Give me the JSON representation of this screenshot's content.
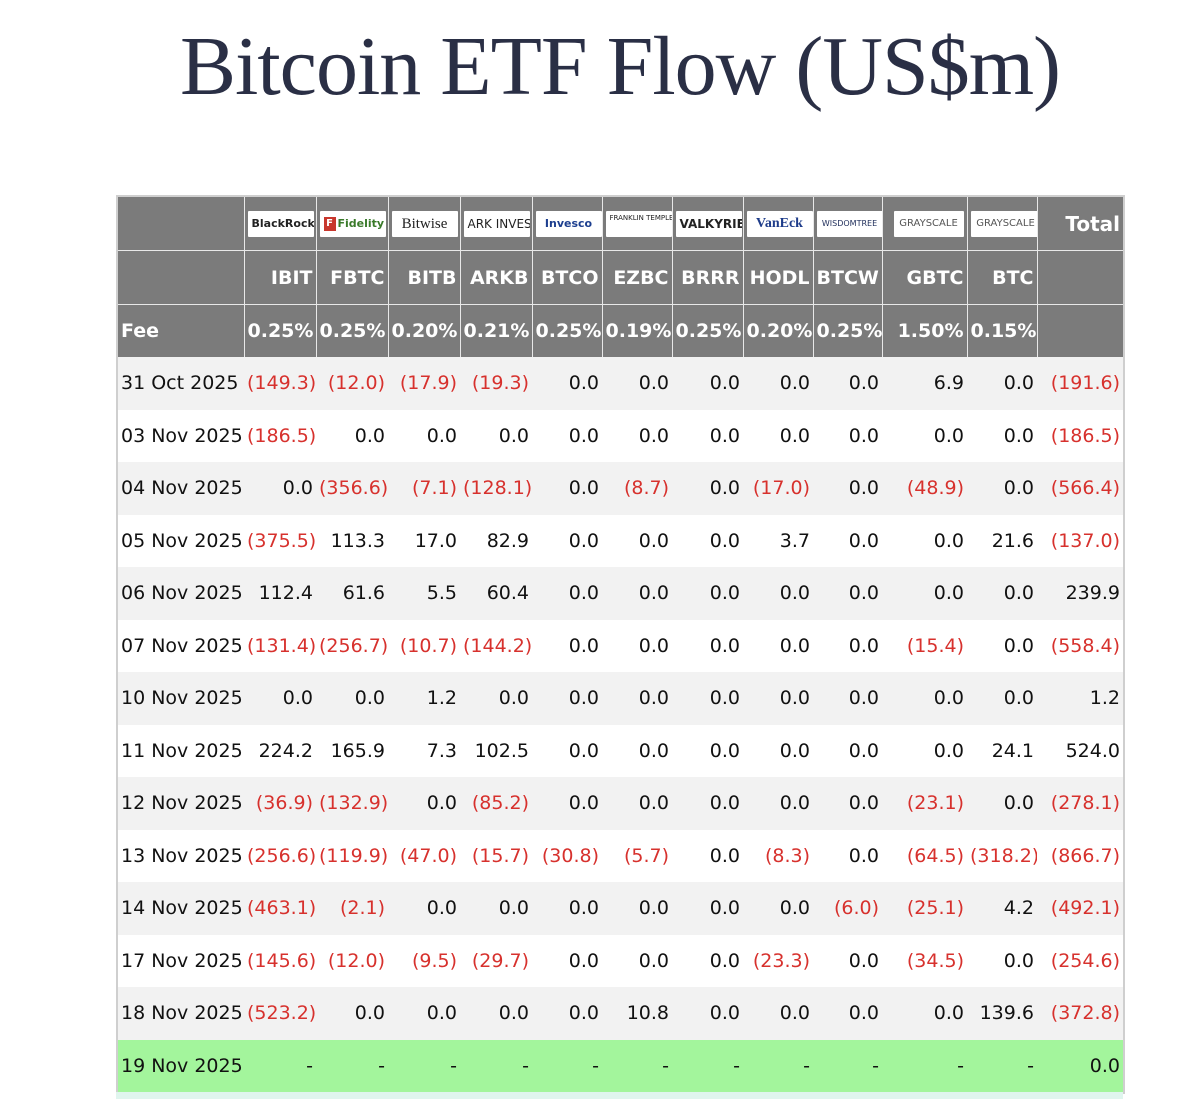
{
  "title": "Bitcoin ETF Flow (US$m)",
  "header": {
    "issuers": [
      {
        "name": "BlackRock",
        "icon": "blackrock-logo"
      },
      {
        "name": "Fidelity",
        "icon": "fidelity-logo"
      },
      {
        "name": "Bitwise",
        "icon": "bitwise-logo"
      },
      {
        "name": "ARK INVEST",
        "icon": "ark-logo"
      },
      {
        "name": "Invesco",
        "icon": "invesco-logo"
      },
      {
        "name": "FRANKLIN TEMPLETON",
        "icon": "franklin-logo"
      },
      {
        "name": "VALKYRIE",
        "icon": "valkyrie-logo"
      },
      {
        "name": "VanEck",
        "icon": "vaneck-logo"
      },
      {
        "name": "WISDOMTREE",
        "icon": "wisdomtree-logo"
      },
      {
        "name": "GRAYSCALE",
        "icon": "grayscale-logo"
      },
      {
        "name": "GRAYSCALE",
        "icon": "grayscale-logo"
      }
    ],
    "total_label": "Total",
    "tickers": [
      "IBIT",
      "FBTC",
      "BITB",
      "ARKB",
      "BTCO",
      "EZBC",
      "BRRR",
      "HODL",
      "BTCW",
      "GBTC",
      "BTC"
    ],
    "fee_label": "Fee",
    "fees": [
      "0.25%",
      "0.25%",
      "0.20%",
      "0.21%",
      "0.25%",
      "0.19%",
      "0.25%",
      "0.20%",
      "0.25%",
      "1.50%",
      "0.15%"
    ]
  },
  "rows": [
    {
      "date": "31 Oct 2025",
      "values": [
        "(149.3)",
        "(12.0)",
        "(17.9)",
        "(19.3)",
        "0.0",
        "0.0",
        "0.0",
        "0.0",
        "0.0",
        "6.9",
        "0.0"
      ],
      "total": "(191.6)"
    },
    {
      "date": "03 Nov 2025",
      "values": [
        "(186.5)",
        "0.0",
        "0.0",
        "0.0",
        "0.0",
        "0.0",
        "0.0",
        "0.0",
        "0.0",
        "0.0",
        "0.0"
      ],
      "total": "(186.5)"
    },
    {
      "date": "04 Nov 2025",
      "values": [
        "0.0",
        "(356.6)",
        "(7.1)",
        "(128.1)",
        "0.0",
        "(8.7)",
        "0.0",
        "(17.0)",
        "0.0",
        "(48.9)",
        "0.0"
      ],
      "total": "(566.4)"
    },
    {
      "date": "05 Nov 2025",
      "values": [
        "(375.5)",
        "113.3",
        "17.0",
        "82.9",
        "0.0",
        "0.0",
        "0.0",
        "3.7",
        "0.0",
        "0.0",
        "21.6"
      ],
      "total": "(137.0)"
    },
    {
      "date": "06 Nov 2025",
      "values": [
        "112.4",
        "61.6",
        "5.5",
        "60.4",
        "0.0",
        "0.0",
        "0.0",
        "0.0",
        "0.0",
        "0.0",
        "0.0"
      ],
      "total": "239.9"
    },
    {
      "date": "07 Nov 2025",
      "values": [
        "(131.4)",
        "(256.7)",
        "(10.7)",
        "(144.2)",
        "0.0",
        "0.0",
        "0.0",
        "0.0",
        "0.0",
        "(15.4)",
        "0.0"
      ],
      "total": "(558.4)"
    },
    {
      "date": "10 Nov 2025",
      "values": [
        "0.0",
        "0.0",
        "1.2",
        "0.0",
        "0.0",
        "0.0",
        "0.0",
        "0.0",
        "0.0",
        "0.0",
        "0.0"
      ],
      "total": "1.2"
    },
    {
      "date": "11 Nov 2025",
      "values": [
        "224.2",
        "165.9",
        "7.3",
        "102.5",
        "0.0",
        "0.0",
        "0.0",
        "0.0",
        "0.0",
        "0.0",
        "24.1"
      ],
      "total": "524.0"
    },
    {
      "date": "12 Nov 2025",
      "values": [
        "(36.9)",
        "(132.9)",
        "0.0",
        "(85.2)",
        "0.0",
        "0.0",
        "0.0",
        "0.0",
        "0.0",
        "(23.1)",
        "0.0"
      ],
      "total": "(278.1)"
    },
    {
      "date": "13 Nov 2025",
      "values": [
        "(256.6)",
        "(119.9)",
        "(47.0)",
        "(15.7)",
        "(30.8)",
        "(5.7)",
        "0.0",
        "(8.3)",
        "0.0",
        "(64.5)",
        "(318.2)"
      ],
      "total": "(866.7)"
    },
    {
      "date": "14 Nov 2025",
      "values": [
        "(463.1)",
        "(2.1)",
        "0.0",
        "0.0",
        "0.0",
        "0.0",
        "0.0",
        "0.0",
        "(6.0)",
        "(25.1)",
        "4.2"
      ],
      "total": "(492.1)"
    },
    {
      "date": "17 Nov 2025",
      "values": [
        "(145.6)",
        "(12.0)",
        "(9.5)",
        "(29.7)",
        "0.0",
        "0.0",
        "0.0",
        "(23.3)",
        "0.0",
        "(34.5)",
        "0.0"
      ],
      "total": "(254.6)"
    },
    {
      "date": "18 Nov 2025",
      "values": [
        "(523.2)",
        "0.0",
        "0.0",
        "0.0",
        "0.0",
        "10.8",
        "0.0",
        "0.0",
        "0.0",
        "0.0",
        "139.6"
      ],
      "total": "(372.8)"
    },
    {
      "date": "19 Nov 2025",
      "values": [
        "-",
        "-",
        "-",
        "-",
        "-",
        "-",
        "-",
        "-",
        "-",
        "-",
        "-"
      ],
      "total": "0.0",
      "highlight": true
    }
  ],
  "colors": {
    "header_bg": "#7b7b7b",
    "negative": "#d7312d",
    "highlight_row": "#a3f59c",
    "title": "#2a2f45"
  }
}
